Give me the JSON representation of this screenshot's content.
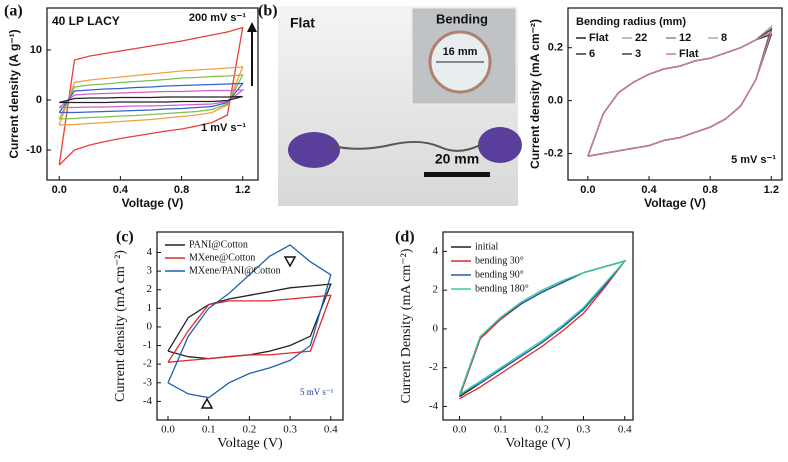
{
  "panels": {
    "b_label": "(b)"
  },
  "photo": {
    "flat_label": "Flat",
    "bending_label": "Bending",
    "diameter": "16 mm",
    "scale_bar": "20 mm"
  },
  "chart_data": [
    {
      "type": "line",
      "panel_label": "(a)",
      "title": "40 LP LACY",
      "x_label": "Voltage (V)",
      "y_label": "Current density (A g⁻¹)",
      "annotations": [
        "200 mV s⁻¹",
        "1 mV s⁻¹"
      ],
      "xlim": [
        -0.08,
        1.3
      ],
      "ylim": [
        -16,
        18.4
      ],
      "xticks": [
        {
          "value": 0,
          "label": "0.0"
        },
        0.4,
        0.8,
        1.2
      ],
      "yticks": [
        -10,
        0,
        10
      ],
      "x": [
        0,
        0.1,
        0.2,
        0.3,
        0.4,
        0.5,
        0.6,
        0.7,
        0.8,
        0.9,
        1.0,
        1.1,
        1.2,
        1.1,
        1.0,
        0.9,
        0.8,
        0.7,
        0.6,
        0.5,
        0.4,
        0.3,
        0.2,
        0.1,
        0
      ],
      "series": [
        {
          "color": "#e8403a",
          "values": [
            -13,
            8,
            8.8,
            9.3,
            9.8,
            10.3,
            10.8,
            11.3,
            11.8,
            12.4,
            13,
            13.6,
            14.5,
            -3,
            -4.5,
            -5.2,
            -5.8,
            -6.2,
            -6.7,
            -7.2,
            -7.7,
            -8.3,
            -9,
            -10,
            -13
          ]
        },
        {
          "color": "#f0a040",
          "values": [
            -5,
            3.5,
            4,
            4.3,
            4.6,
            4.9,
            5.2,
            5.5,
            5.8,
            6,
            6.2,
            6.4,
            6.6,
            -1,
            -2.5,
            -3,
            -3.3,
            -3.6,
            -3.9,
            -4.1,
            -4.3,
            -4.5,
            -4.7,
            -4.9,
            -5
          ]
        },
        {
          "color": "#7cc050",
          "values": [
            -3.8,
            2.6,
            3,
            3.2,
            3.5,
            3.7,
            3.9,
            4.1,
            4.4,
            4.5,
            4.7,
            4.8,
            5,
            -0.8,
            -1.9,
            -2.3,
            -2.5,
            -2.7,
            -2.9,
            -3.1,
            -3.2,
            -3.4,
            -3.5,
            -3.7,
            -3.8
          ]
        },
        {
          "color": "#3a60d0",
          "values": [
            -2.5,
            1.8,
            2,
            2.2,
            2.3,
            2.5,
            2.6,
            2.8,
            2.9,
            3,
            3.1,
            3.2,
            3.3,
            -0.5,
            -1.3,
            -1.5,
            -1.7,
            -1.8,
            -2,
            -2.1,
            -2.2,
            -2.3,
            -2.4,
            -2.5,
            -2.5
          ]
        },
        {
          "color": "#d060c8",
          "values": [
            -1.5,
            1,
            1.2,
            1.3,
            1.4,
            1.5,
            1.6,
            1.7,
            1.7,
            1.8,
            1.9,
            1.9,
            2,
            -0.3,
            -0.8,
            -0.9,
            -1,
            -1.1,
            -1.2,
            -1.2,
            -1.3,
            -1.4,
            -1.4,
            -1.5,
            -1.5
          ]
        },
        {
          "color": "#222222",
          "values": [
            -0.5,
            0.3,
            0.4,
            0.4,
            0.5,
            0.5,
            0.5,
            0.6,
            0.6,
            0.6,
            0.6,
            0.6,
            0.7,
            -0.1,
            -0.3,
            -0.3,
            -0.3,
            -0.4,
            -0.4,
            -0.4,
            -0.4,
            -0.5,
            -0.5,
            -0.5,
            -0.5
          ]
        }
      ]
    },
    {
      "type": "line",
      "x_label": "Voltage (V)",
      "y_label": "Current density (mA cm⁻²)",
      "legend_title": "Bending radius (mm)",
      "legend": "upper left",
      "annotations": [
        "5 mV s⁻¹"
      ],
      "xlim": [
        -0.13,
        1.27
      ],
      "ylim": [
        -0.3,
        0.35
      ],
      "xticks": [
        {
          "value": 0,
          "label": "0.0"
        },
        0.4,
        0.8,
        1.2
      ],
      "yticks": [
        -0.2,
        {
          "value": 0,
          "label": "0.0"
        },
        0.2
      ],
      "x": [
        0,
        0.1,
        0.2,
        0.3,
        0.4,
        0.5,
        0.6,
        0.7,
        0.8,
        0.9,
        1.0,
        1.1,
        1.2,
        1.1,
        1.0,
        0.9,
        0.8,
        0.7,
        0.6,
        0.5,
        0.4,
        0.3,
        0.2,
        0.1,
        0
      ],
      "series": [
        {
          "name": "Flat",
          "color": "#222222",
          "values": [
            -0.21,
            -0.05,
            0.03,
            0.07,
            0.1,
            0.12,
            0.13,
            0.15,
            0.16,
            0.18,
            0.2,
            0.23,
            0.27,
            0.08,
            -0.02,
            -0.07,
            -0.1,
            -0.12,
            -0.14,
            -0.15,
            -0.17,
            -0.18,
            -0.19,
            -0.2,
            -0.21
          ]
        },
        {
          "name": "22",
          "color": "#b8a888",
          "values": [
            -0.21,
            -0.05,
            0.03,
            0.07,
            0.1,
            0.12,
            0.13,
            0.15,
            0.16,
            0.18,
            0.2,
            0.23,
            0.28,
            0.08,
            -0.02,
            -0.07,
            -0.1,
            -0.12,
            -0.14,
            -0.15,
            -0.17,
            -0.18,
            -0.19,
            -0.2,
            -0.21
          ]
        },
        {
          "name": "12",
          "color": "#888888",
          "values": [
            -0.21,
            -0.05,
            0.03,
            0.07,
            0.1,
            0.12,
            0.13,
            0.15,
            0.16,
            0.18,
            0.2,
            0.23,
            0.26,
            0.08,
            -0.02,
            -0.07,
            -0.1,
            -0.12,
            -0.14,
            -0.15,
            -0.17,
            -0.18,
            -0.19,
            -0.2,
            -0.21
          ]
        },
        {
          "name": "8",
          "color": "#aaaaaa",
          "values": [
            -0.21,
            -0.05,
            0.03,
            0.07,
            0.1,
            0.12,
            0.13,
            0.15,
            0.16,
            0.18,
            0.2,
            0.23,
            0.28,
            0.08,
            -0.02,
            -0.07,
            -0.1,
            -0.12,
            -0.14,
            -0.15,
            -0.17,
            -0.18,
            -0.19,
            -0.2,
            -0.21
          ]
        },
        {
          "name": "6",
          "color": "#333333",
          "values": [
            -0.21,
            -0.05,
            0.03,
            0.07,
            0.1,
            0.12,
            0.13,
            0.15,
            0.16,
            0.18,
            0.2,
            0.23,
            0.25,
            0.08,
            -0.02,
            -0.07,
            -0.1,
            -0.12,
            -0.14,
            -0.15,
            -0.17,
            -0.18,
            -0.19,
            -0.2,
            -0.21
          ]
        },
        {
          "name": "3",
          "color": "#444444",
          "values": [
            -0.21,
            -0.05,
            0.03,
            0.07,
            0.1,
            0.12,
            0.13,
            0.15,
            0.16,
            0.18,
            0.2,
            0.23,
            0.27,
            0.08,
            -0.02,
            -0.07,
            -0.1,
            -0.12,
            -0.14,
            -0.15,
            -0.17,
            -0.18,
            -0.19,
            -0.2,
            -0.21
          ]
        },
        {
          "name": "Flat",
          "color": "#d08090",
          "values": [
            -0.21,
            -0.05,
            0.03,
            0.07,
            0.1,
            0.12,
            0.13,
            0.15,
            0.16,
            0.18,
            0.2,
            0.23,
            0.26,
            0.08,
            -0.02,
            -0.07,
            -0.1,
            -0.12,
            -0.14,
            -0.15,
            -0.17,
            -0.18,
            -0.19,
            -0.2,
            -0.21
          ]
        }
      ]
    },
    {
      "type": "line",
      "panel_label": "(c)",
      "x_label": "Voltage (V)",
      "y_label": "Current density (mA cm⁻²)",
      "legend": "upper left",
      "annotations": [
        "5 mV s⁻¹"
      ],
      "xlim": [
        -0.027,
        0.43
      ],
      "ylim": [
        -5,
        5.1
      ],
      "xticks": [
        {
          "value": 0,
          "label": "0.0"
        },
        0.1,
        0.2,
        0.3,
        0.4
      ],
      "yticks": [
        -4,
        -3,
        -2,
        -1,
        0,
        1,
        2,
        3,
        4
      ],
      "x": [
        0,
        0.05,
        0.1,
        0.15,
        0.2,
        0.25,
        0.3,
        0.35,
        0.4,
        0.35,
        0.3,
        0.25,
        0.2,
        0.15,
        0.1,
        0.05,
        0
      ],
      "series": [
        {
          "name": "PANI@Cotton",
          "color": "#222222",
          "values": [
            -1.3,
            0.5,
            1.2,
            1.5,
            1.7,
            1.9,
            2.1,
            2.2,
            2.3,
            -0.5,
            -1,
            -1.3,
            -1.5,
            -1.6,
            -1.7,
            -1.6,
            -1.3
          ]
        },
        {
          "name": "MXene@Cotton",
          "color": "#e02828",
          "values": [
            -1.9,
            -0.2,
            1.2,
            1.4,
            1.4,
            1.4,
            1.5,
            1.6,
            1.7,
            -1.3,
            -1.4,
            -1.5,
            -1.5,
            -1.6,
            -1.7,
            -1.8,
            -1.9
          ]
        },
        {
          "name": "MXene/PANI@Cotton",
          "color": "#2060b0",
          "values": [
            -3,
            -0.5,
            1,
            1.8,
            2.8,
            3.8,
            4.4,
            3.5,
            2.8,
            -1,
            -1.8,
            -2.2,
            -2.5,
            -3,
            -3.8,
            -3.6,
            -3
          ]
        }
      ]
    },
    {
      "type": "line",
      "panel_label": "(d)",
      "x_label": "Voltage (V)",
      "y_label": "Current Density (mA cm⁻²)",
      "legend": "upper left",
      "xlim": [
        -0.04,
        0.42
      ],
      "ylim": [
        -4.7,
        5
      ],
      "xticks": [
        {
          "value": 0,
          "label": "0.0"
        },
        0.1,
        0.2,
        0.3,
        0.4
      ],
      "yticks": [
        -4,
        -2,
        0,
        2,
        4
      ],
      "x": [
        0,
        0.05,
        0.1,
        0.15,
        0.2,
        0.25,
        0.3,
        0.35,
        0.4,
        0.35,
        0.3,
        0.25,
        0.2,
        0.15,
        0.1,
        0.05,
        0
      ],
      "series": [
        {
          "name": "initial",
          "color": "#222222",
          "values": [
            -3.5,
            -0.5,
            0.5,
            1.3,
            1.9,
            2.4,
            2.9,
            3.2,
            3.5,
            2.2,
            1,
            0.1,
            -0.7,
            -1.4,
            -2.1,
            -2.8,
            -3.5
          ]
        },
        {
          "name": "bending 30°",
          "color": "#e02828",
          "values": [
            -3.5,
            -0.5,
            0.5,
            1.3,
            1.9,
            2.4,
            2.9,
            3.2,
            3.5,
            2.1,
            0.8,
            -0.1,
            -0.9,
            -1.6,
            -2.3,
            -3,
            -3.6
          ]
        },
        {
          "name": "bending 90°",
          "color": "#2060b0",
          "values": [
            -3.4,
            -0.4,
            0.6,
            1.3,
            1.9,
            2.4,
            2.9,
            3.2,
            3.5,
            2.2,
            1,
            0.1,
            -0.7,
            -1.4,
            -2.1,
            -2.8,
            -3.4
          ]
        },
        {
          "name": "bending 180°",
          "color": "#30d0a0",
          "values": [
            -3.4,
            -0.4,
            0.6,
            1.4,
            2,
            2.5,
            2.9,
            3.2,
            3.5,
            2.3,
            1.1,
            0.2,
            -0.6,
            -1.3,
            -2,
            -2.7,
            -3.4
          ]
        }
      ]
    }
  ]
}
